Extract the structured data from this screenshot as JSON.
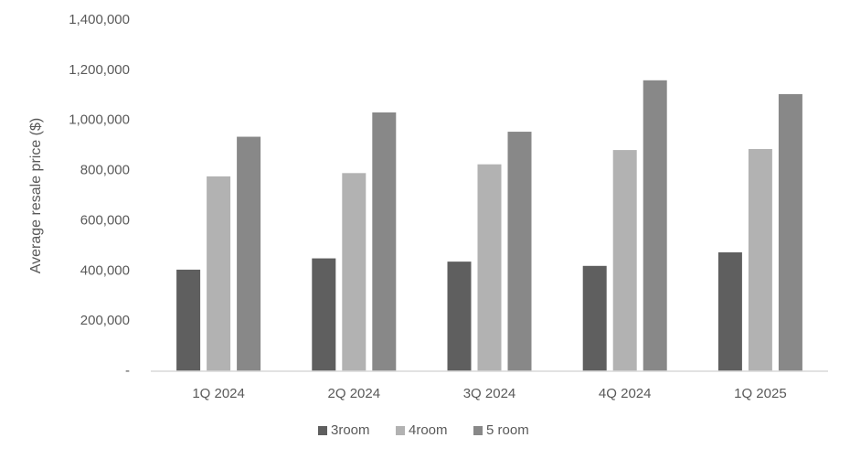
{
  "chart_data": {
    "type": "bar",
    "y_axis_title": "Average resale price ($)",
    "categories": [
      "1Q 2024",
      "2Q 2024",
      "3Q 2024",
      "4Q 2024",
      "1Q 2025"
    ],
    "series": [
      {
        "name": "3room",
        "color": "#5f5f5f",
        "values": [
          405000,
          450000,
          437000,
          420000,
          474000
        ]
      },
      {
        "name": "4room",
        "color": "#b2b2b2",
        "values": [
          777000,
          790000,
          825000,
          882000,
          886000
        ]
      },
      {
        "name": "5 room",
        "color": "#888888",
        "values": [
          935000,
          1032000,
          955000,
          1160000,
          1105000
        ]
      }
    ],
    "ylim": [
      0,
      1400000
    ],
    "yticks": [
      {
        "value": 0,
        "label": "-"
      },
      {
        "value": 200000,
        "label": "200,000"
      },
      {
        "value": 400000,
        "label": "400,000"
      },
      {
        "value": 600000,
        "label": "600,000"
      },
      {
        "value": 800000,
        "label": "800,000"
      },
      {
        "value": 1000000,
        "label": "1,000,000"
      },
      {
        "value": 1200000,
        "label": "1,200,000"
      },
      {
        "value": 1400000,
        "label": "1,400,000"
      }
    ],
    "grid": false,
    "legend": "bottom"
  }
}
